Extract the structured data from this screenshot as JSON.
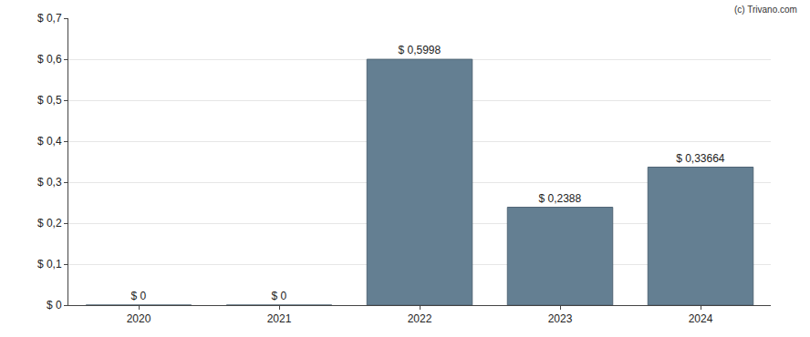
{
  "chart_data": {
    "type": "bar",
    "categories": [
      "2020",
      "2021",
      "2022",
      "2023",
      "2024"
    ],
    "values": [
      0,
      0,
      0.5998,
      0.2388,
      0.33664
    ],
    "value_labels": [
      "$ 0",
      "$ 0",
      "$ 0,5998",
      "$ 0,2388",
      "$ 0,33664"
    ],
    "data_labels": true,
    "color": "#647f92",
    "ylim": [
      0,
      0.7
    ],
    "yticks": [
      {
        "value": 0,
        "label": "$ 0"
      },
      {
        "value": 0.1,
        "label": "$ 0,1"
      },
      {
        "value": 0.2,
        "label": "$ 0,2"
      },
      {
        "value": 0.3,
        "label": "$ 0,3"
      },
      {
        "value": 0.4,
        "label": "$ 0,4"
      },
      {
        "value": 0.5,
        "label": "$ 0,5"
      },
      {
        "value": 0.6,
        "label": "$ 0,6"
      },
      {
        "value": 0.7,
        "label": "$ 0,7"
      }
    ],
    "grid": true,
    "annotations": [
      "(c) Trivano.com"
    ]
  }
}
